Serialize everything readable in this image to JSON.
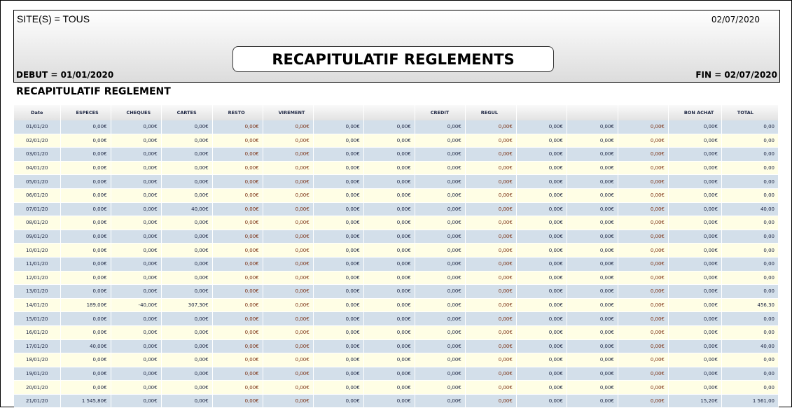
{
  "header": {
    "site": "SITE(S) = TOUS",
    "print_date": "02/07/2020",
    "title": "RECAPITULATIF REGLEMENTS",
    "debut": "DEBUT = 01/01/2020",
    "fin": "FIN = 02/07/2020"
  },
  "section_title": "RECAPITULATIF REGLEMENT",
  "table": {
    "columns": [
      "Date",
      "ESPECES",
      "CHEQUES",
      "CARTES",
      "RESTO",
      "VIREMENT",
      "",
      "",
      "CREDIT",
      "REGUL",
      "",
      "",
      "",
      "BON ACHAT",
      "TOTAL"
    ],
    "rows": [
      [
        "01/01/20",
        "0,00€",
        "0,00€",
        "0,00€",
        "0,00€",
        "0,00€",
        "0,00€",
        "0,00€",
        "0,00€",
        "0,00€",
        "0,00€",
        "0,00€",
        "0,00€",
        "0,00€",
        "0,00"
      ],
      [
        "02/01/20",
        "0,00€",
        "0,00€",
        "0,00€",
        "0,00€",
        "0,00€",
        "0,00€",
        "0,00€",
        "0,00€",
        "0,00€",
        "0,00€",
        "0,00€",
        "0,00€",
        "0,00€",
        "0,00"
      ],
      [
        "03/01/20",
        "0,00€",
        "0,00€",
        "0,00€",
        "0,00€",
        "0,00€",
        "0,00€",
        "0,00€",
        "0,00€",
        "0,00€",
        "0,00€",
        "0,00€",
        "0,00€",
        "0,00€",
        "0,00"
      ],
      [
        "04/01/20",
        "0,00€",
        "0,00€",
        "0,00€",
        "0,00€",
        "0,00€",
        "0,00€",
        "0,00€",
        "0,00€",
        "0,00€",
        "0,00€",
        "0,00€",
        "0,00€",
        "0,00€",
        "0,00"
      ],
      [
        "05/01/20",
        "0,00€",
        "0,00€",
        "0,00€",
        "0,00€",
        "0,00€",
        "0,00€",
        "0,00€",
        "0,00€",
        "0,00€",
        "0,00€",
        "0,00€",
        "0,00€",
        "0,00€",
        "0,00"
      ],
      [
        "06/01/20",
        "0,00€",
        "0,00€",
        "0,00€",
        "0,00€",
        "0,00€",
        "0,00€",
        "0,00€",
        "0,00€",
        "0,00€",
        "0,00€",
        "0,00€",
        "0,00€",
        "0,00€",
        "0,00"
      ],
      [
        "07/01/20",
        "0,00€",
        "0,00€",
        "40,00€",
        "0,00€",
        "0,00€",
        "0,00€",
        "0,00€",
        "0,00€",
        "0,00€",
        "0,00€",
        "0,00€",
        "0,00€",
        "0,00€",
        "40,00"
      ],
      [
        "08/01/20",
        "0,00€",
        "0,00€",
        "0,00€",
        "0,00€",
        "0,00€",
        "0,00€",
        "0,00€",
        "0,00€",
        "0,00€",
        "0,00€",
        "0,00€",
        "0,00€",
        "0,00€",
        "0,00"
      ],
      [
        "09/01/20",
        "0,00€",
        "0,00€",
        "0,00€",
        "0,00€",
        "0,00€",
        "0,00€",
        "0,00€",
        "0,00€",
        "0,00€",
        "0,00€",
        "0,00€",
        "0,00€",
        "0,00€",
        "0,00"
      ],
      [
        "10/01/20",
        "0,00€",
        "0,00€",
        "0,00€",
        "0,00€",
        "0,00€",
        "0,00€",
        "0,00€",
        "0,00€",
        "0,00€",
        "0,00€",
        "0,00€",
        "0,00€",
        "0,00€",
        "0,00"
      ],
      [
        "11/01/20",
        "0,00€",
        "0,00€",
        "0,00€",
        "0,00€",
        "0,00€",
        "0,00€",
        "0,00€",
        "0,00€",
        "0,00€",
        "0,00€",
        "0,00€",
        "0,00€",
        "0,00€",
        "0,00"
      ],
      [
        "12/01/20",
        "0,00€",
        "0,00€",
        "0,00€",
        "0,00€",
        "0,00€",
        "0,00€",
        "0,00€",
        "0,00€",
        "0,00€",
        "0,00€",
        "0,00€",
        "0,00€",
        "0,00€",
        "0,00"
      ],
      [
        "13/01/20",
        "0,00€",
        "0,00€",
        "0,00€",
        "0,00€",
        "0,00€",
        "0,00€",
        "0,00€",
        "0,00€",
        "0,00€",
        "0,00€",
        "0,00€",
        "0,00€",
        "0,00€",
        "0,00"
      ],
      [
        "14/01/20",
        "189,00€",
        "-40,00€",
        "307,30€",
        "0,00€",
        "0,00€",
        "0,00€",
        "0,00€",
        "0,00€",
        "0,00€",
        "0,00€",
        "0,00€",
        "0,00€",
        "0,00€",
        "456,30"
      ],
      [
        "15/01/20",
        "0,00€",
        "0,00€",
        "0,00€",
        "0,00€",
        "0,00€",
        "0,00€",
        "0,00€",
        "0,00€",
        "0,00€",
        "0,00€",
        "0,00€",
        "0,00€",
        "0,00€",
        "0,00"
      ],
      [
        "16/01/20",
        "0,00€",
        "0,00€",
        "0,00€",
        "0,00€",
        "0,00€",
        "0,00€",
        "0,00€",
        "0,00€",
        "0,00€",
        "0,00€",
        "0,00€",
        "0,00€",
        "0,00€",
        "0,00"
      ],
      [
        "17/01/20",
        "40,00€",
        "0,00€",
        "0,00€",
        "0,00€",
        "0,00€",
        "0,00€",
        "0,00€",
        "0,00€",
        "0,00€",
        "0,00€",
        "0,00€",
        "0,00€",
        "0,00€",
        "40,00"
      ],
      [
        "18/01/20",
        "0,00€",
        "0,00€",
        "0,00€",
        "0,00€",
        "0,00€",
        "0,00€",
        "0,00€",
        "0,00€",
        "0,00€",
        "0,00€",
        "0,00€",
        "0,00€",
        "0,00€",
        "0,00"
      ],
      [
        "19/01/20",
        "0,00€",
        "0,00€",
        "0,00€",
        "0,00€",
        "0,00€",
        "0,00€",
        "0,00€",
        "0,00€",
        "0,00€",
        "0,00€",
        "0,00€",
        "0,00€",
        "0,00€",
        "0,00"
      ],
      [
        "20/01/20",
        "0,00€",
        "0,00€",
        "0,00€",
        "0,00€",
        "0,00€",
        "0,00€",
        "0,00€",
        "0,00€",
        "0,00€",
        "0,00€",
        "0,00€",
        "0,00€",
        "0,00€",
        "0,00"
      ],
      [
        "21/01/20",
        "1 545,80€",
        "0,00€",
        "0,00€",
        "0,00€",
        "0,00€",
        "0,00€",
        "0,00€",
        "0,00€",
        "0,00€",
        "0,00€",
        "0,00€",
        "0,00€",
        "15,20€",
        "1 561,00"
      ]
    ]
  },
  "colors": {
    "row_odd": "#d3dfea",
    "row_even": "#fffee5",
    "text": "#1a2340",
    "text_brown": "#7a2e10"
  }
}
